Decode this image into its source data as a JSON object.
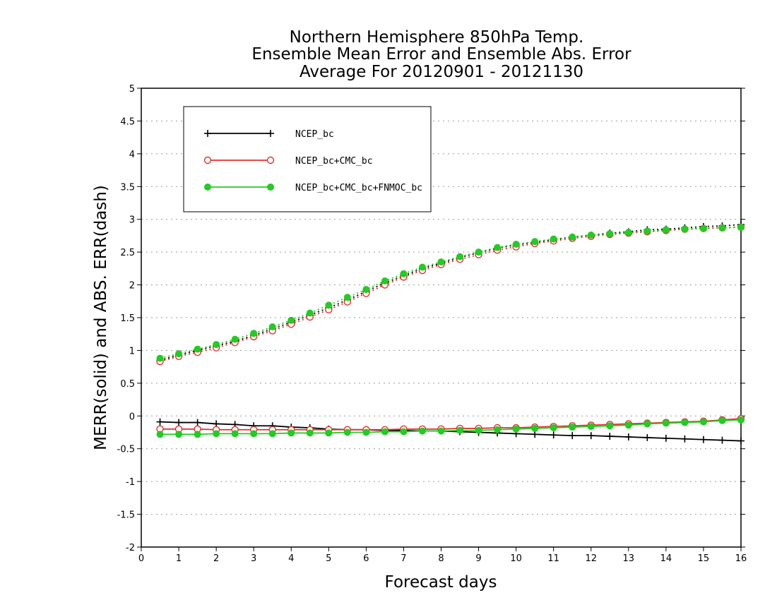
{
  "chart_data": {
    "type": "line",
    "title_lines": [
      "Northern Hemisphere 850hPa Temp.",
      "Ensemble Mean Error and Ensemble Abs. Error",
      "Average For 20120901 - 20121130"
    ],
    "xlabel": "Forecast days",
    "ylabel": "MERR(solid) and ABS. ERR(dash)",
    "xlim": [
      0,
      16
    ],
    "ylim": [
      -2,
      5
    ],
    "xticks": [
      "0",
      "1",
      "2",
      "3",
      "4",
      "5",
      "6",
      "7",
      "8",
      "9",
      "10",
      "11",
      "12",
      "13",
      "14",
      "15",
      "16"
    ],
    "yticks": [
      "-2",
      "-1.5",
      "-1",
      "-0.5",
      "0",
      "0.5",
      "1",
      "1.5",
      "2",
      "2.5",
      "3",
      "3.5",
      "4",
      "4.5",
      "5"
    ],
    "grid": true,
    "legend_position": "top-left",
    "x": [
      0.5,
      1,
      1.5,
      2,
      2.5,
      3,
      3.5,
      4,
      4.5,
      5,
      5.5,
      6,
      6.5,
      7,
      7.5,
      8,
      8.5,
      9,
      9.5,
      10,
      10.5,
      11,
      11.5,
      12,
      12.5,
      13,
      13.5,
      14,
      14.5,
      15,
      15.5,
      16
    ],
    "series": [
      {
        "name": "NCEP_bc",
        "color": "#000000",
        "marker": "plus",
        "merr": [
          -0.09,
          -0.1,
          -0.1,
          -0.12,
          -0.13,
          -0.15,
          -0.15,
          -0.17,
          -0.18,
          -0.2,
          -0.21,
          -0.21,
          -0.22,
          -0.22,
          -0.23,
          -0.23,
          -0.24,
          -0.25,
          -0.26,
          -0.27,
          -0.28,
          -0.29,
          -0.3,
          -0.3,
          -0.31,
          -0.32,
          -0.33,
          -0.34,
          -0.35,
          -0.36,
          -0.37,
          -0.38
        ],
        "abs_err": [
          0.85,
          0.93,
          1.0,
          1.07,
          1.14,
          1.23,
          1.33,
          1.43,
          1.54,
          1.65,
          1.77,
          1.9,
          2.03,
          2.14,
          2.25,
          2.33,
          2.42,
          2.49,
          2.56,
          2.61,
          2.65,
          2.69,
          2.73,
          2.76,
          2.79,
          2.81,
          2.84,
          2.85,
          2.87,
          2.89,
          2.9,
          2.92
        ]
      },
      {
        "name": "NCEP_bc+CMC_bc",
        "color": "#e03030",
        "marker": "open-circle",
        "merr": [
          -0.2,
          -0.2,
          -0.2,
          -0.21,
          -0.21,
          -0.21,
          -0.21,
          -0.21,
          -0.21,
          -0.21,
          -0.21,
          -0.21,
          -0.21,
          -0.2,
          -0.2,
          -0.2,
          -0.19,
          -0.19,
          -0.18,
          -0.18,
          -0.17,
          -0.16,
          -0.15,
          -0.14,
          -0.13,
          -0.12,
          -0.11,
          -0.1,
          -0.09,
          -0.08,
          -0.06,
          -0.04
        ],
        "abs_err": [
          0.83,
          0.91,
          0.97,
          1.04,
          1.12,
          1.21,
          1.3,
          1.4,
          1.51,
          1.62,
          1.74,
          1.87,
          2.0,
          2.12,
          2.22,
          2.31,
          2.39,
          2.46,
          2.53,
          2.58,
          2.63,
          2.67,
          2.71,
          2.74,
          2.77,
          2.79,
          2.81,
          2.83,
          2.85,
          2.86,
          2.87,
          2.88
        ]
      },
      {
        "name": "NCEP_bc+CMC_bc+FNMOC_bc",
        "color": "#22cc22",
        "marker": "filled-circle",
        "merr": [
          -0.28,
          -0.28,
          -0.28,
          -0.27,
          -0.27,
          -0.27,
          -0.27,
          -0.26,
          -0.26,
          -0.26,
          -0.25,
          -0.25,
          -0.24,
          -0.24,
          -0.23,
          -0.23,
          -0.22,
          -0.22,
          -0.21,
          -0.2,
          -0.19,
          -0.18,
          -0.17,
          -0.16,
          -0.15,
          -0.14,
          -0.12,
          -0.11,
          -0.1,
          -0.09,
          -0.07,
          -0.06
        ],
        "abs_err": [
          0.88,
          0.95,
          1.02,
          1.09,
          1.17,
          1.26,
          1.36,
          1.46,
          1.57,
          1.69,
          1.81,
          1.93,
          2.06,
          2.17,
          2.27,
          2.35,
          2.43,
          2.5,
          2.57,
          2.62,
          2.66,
          2.7,
          2.73,
          2.76,
          2.78,
          2.8,
          2.82,
          2.84,
          2.85,
          2.86,
          2.87,
          2.88
        ]
      }
    ]
  }
}
